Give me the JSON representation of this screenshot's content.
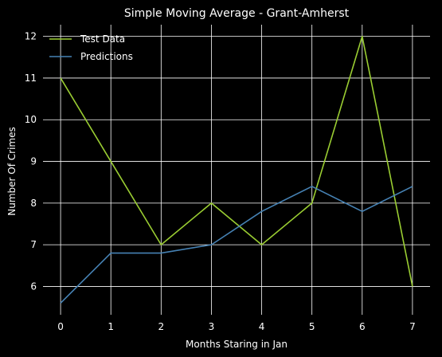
{
  "chart_data": {
    "type": "line",
    "title": "Simple Moving Average - Grant-Amherst",
    "xlabel": "Months Staring in Jan",
    "ylabel": "Number Of Crimes",
    "x": [
      0,
      1,
      2,
      3,
      4,
      5,
      6,
      7
    ],
    "xlim": [
      -0.35,
      7.35
    ],
    "ylim": [
      5.32,
      12.28
    ],
    "xticks": [
      "0",
      "1",
      "2",
      "3",
      "4",
      "5",
      "6",
      "7"
    ],
    "yticks": [
      "6",
      "7",
      "8",
      "9",
      "10",
      "11",
      "12"
    ],
    "grid": true,
    "legend_position": "top-left",
    "series": [
      {
        "name": "Test Data",
        "color": "#9acd32",
        "values": [
          11,
          9,
          7,
          8,
          7,
          8,
          12,
          6
        ]
      },
      {
        "name": "Predictions",
        "color": "#4682b4",
        "values": [
          5.6,
          6.8,
          6.8,
          7.0,
          7.8,
          8.4,
          7.8,
          8.4
        ]
      }
    ]
  },
  "colors": {
    "background": "#000000",
    "grid": "#ffffff",
    "text": "#ffffff"
  }
}
